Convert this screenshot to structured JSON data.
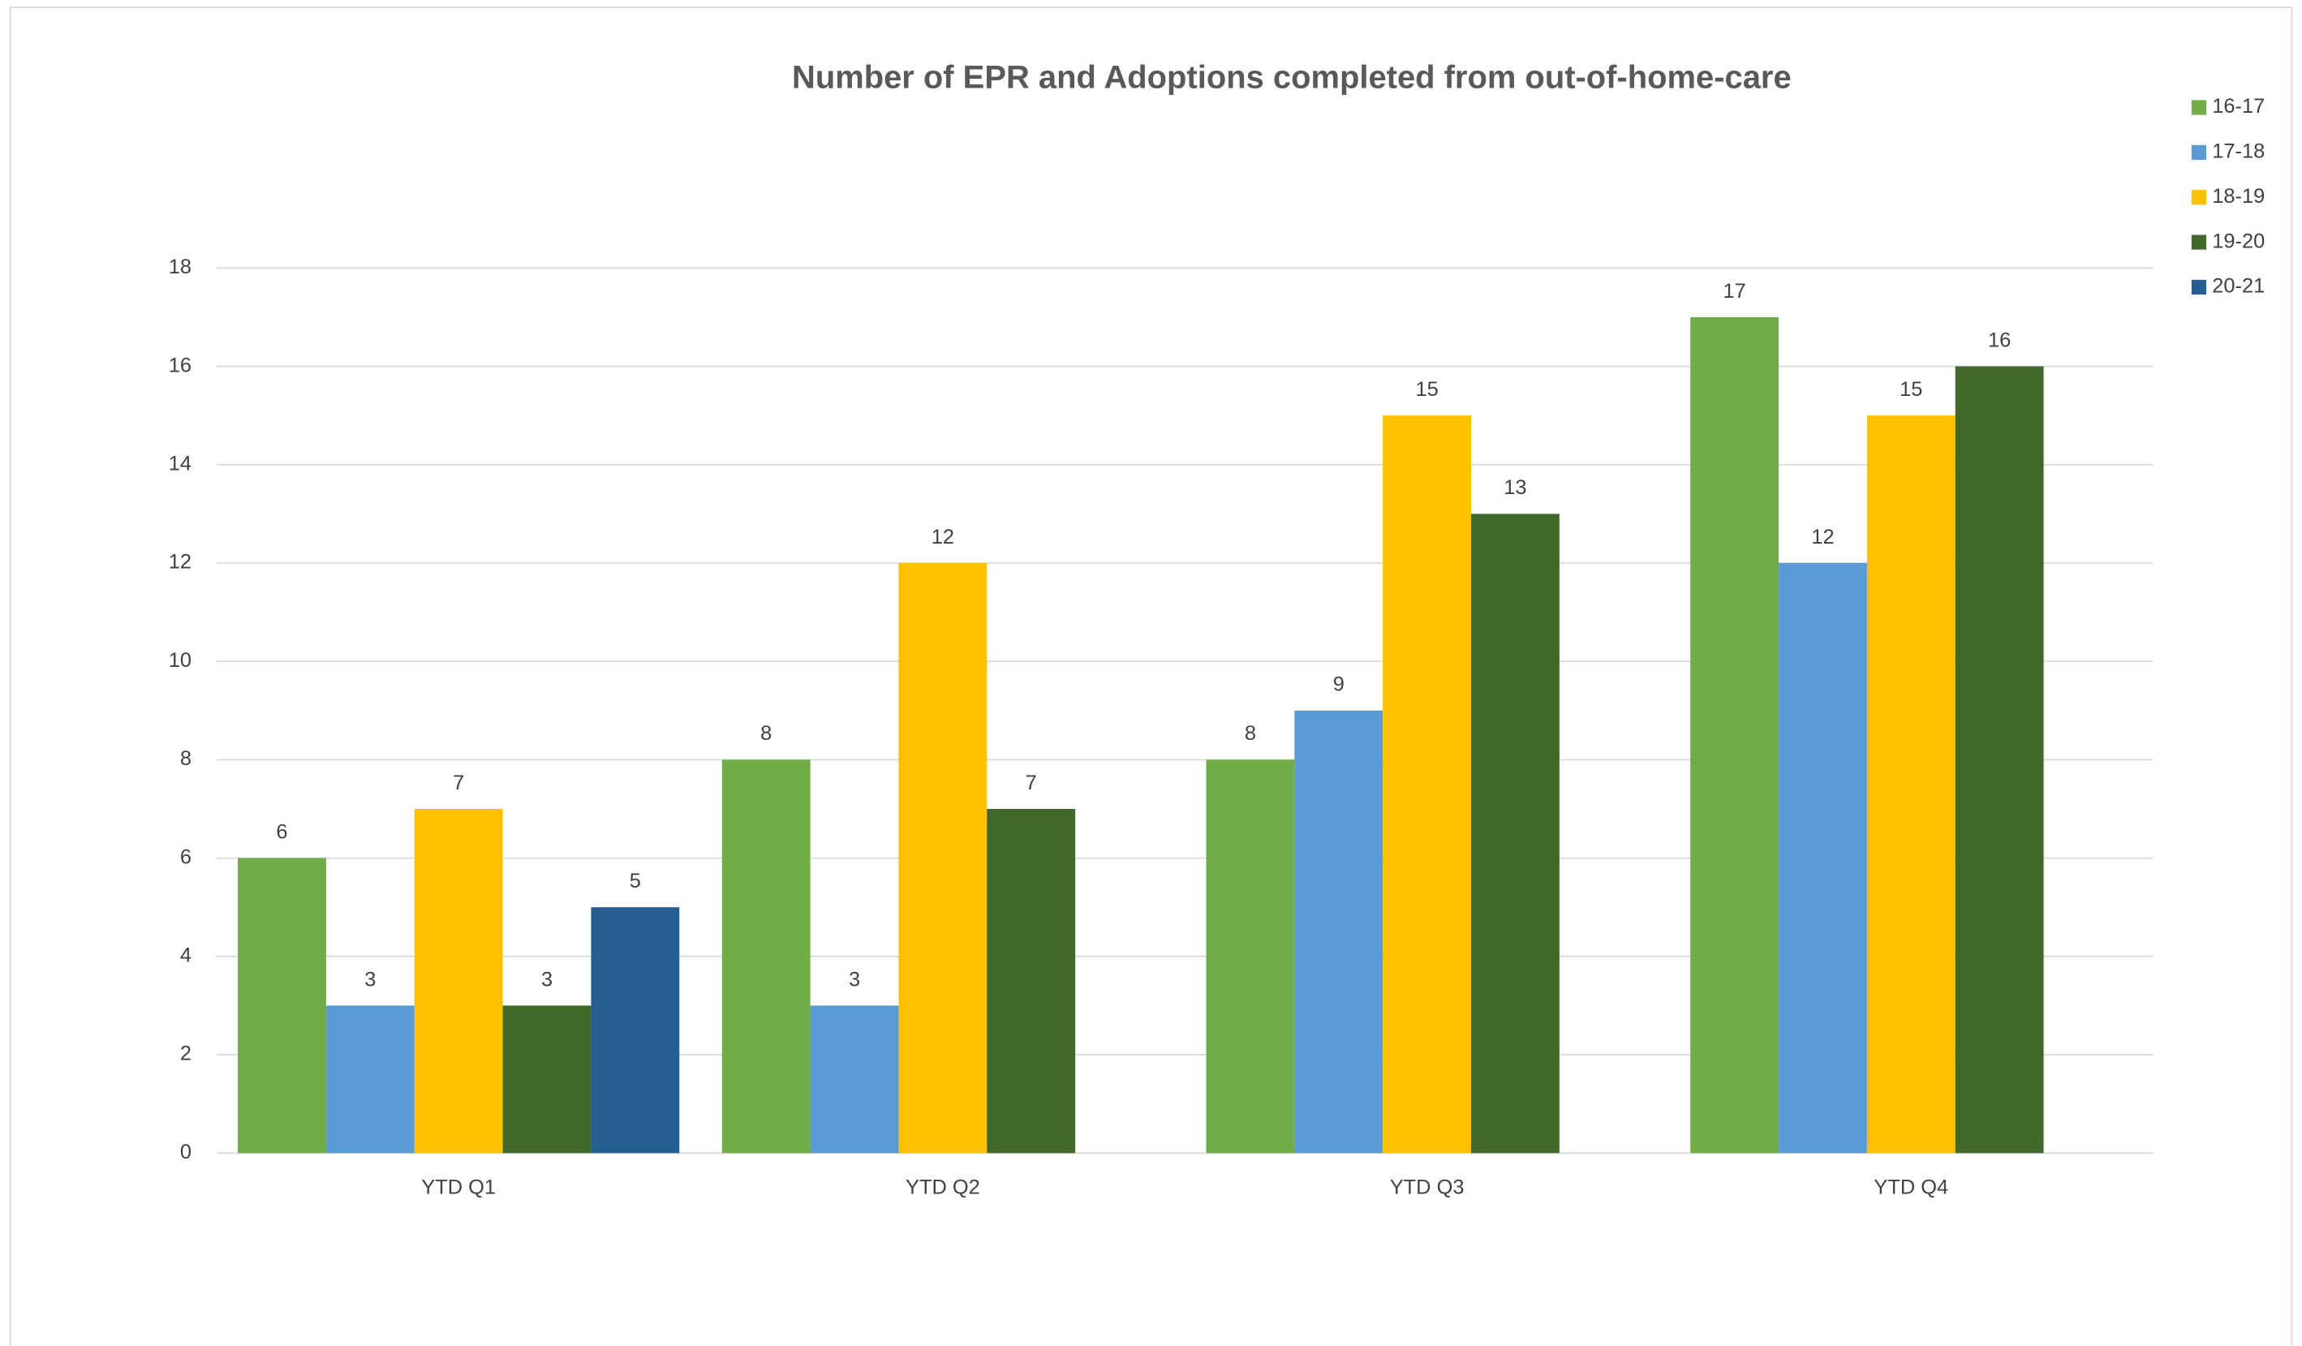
{
  "chart_data": {
    "type": "bar",
    "title": "Number of EPR and Adoptions completed from out-of-home-care",
    "categories": [
      "YTD Q1",
      "YTD Q2",
      "YTD Q3",
      "YTD Q4"
    ],
    "series": [
      {
        "name": "16-17",
        "color": "#70ad47",
        "values": [
          6,
          8,
          8,
          17
        ]
      },
      {
        "name": "17-18",
        "color": "#5b9bd5",
        "values": [
          3,
          3,
          9,
          12
        ]
      },
      {
        "name": "18-19",
        "color": "#ffc000",
        "values": [
          7,
          12,
          15,
          15
        ]
      },
      {
        "name": "19-20",
        "color": "#43682b",
        "values": [
          3,
          7,
          13,
          16
        ]
      },
      {
        "name": "20-21",
        "color": "#255e91",
        "values": [
          5,
          null,
          null,
          null
        ]
      }
    ],
    "ylim": [
      0,
      18
    ],
    "yticks": [
      0,
      2,
      4,
      6,
      8,
      10,
      12,
      14,
      16,
      18
    ],
    "grid": true,
    "legend": "right"
  }
}
